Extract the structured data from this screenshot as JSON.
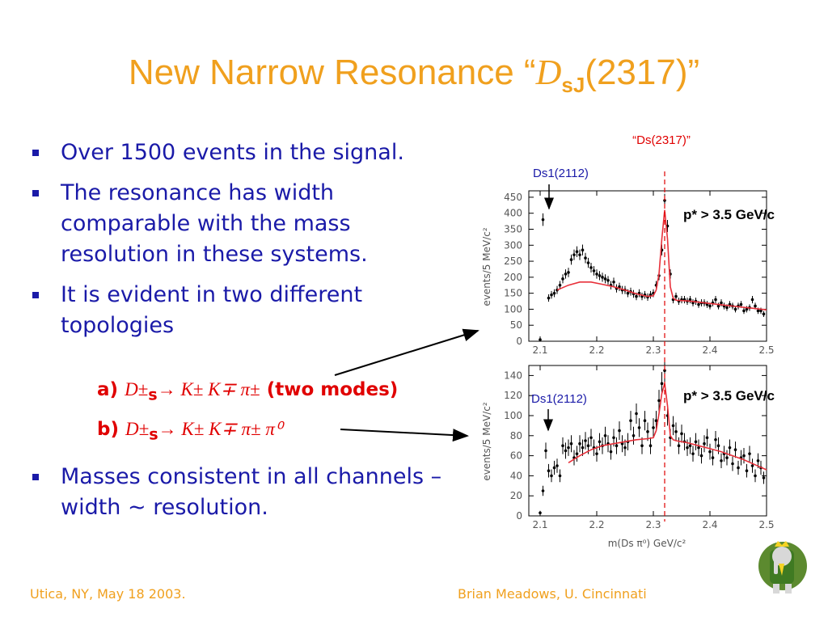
{
  "title": {
    "text": "New Narrow Resonance “",
    "symbol": "D",
    "sub": "sJ",
    "rest": "(2317)”"
  },
  "bullets": [
    "Over 1500 events in the signal.",
    "The resonance has width comparable with the mass resolution in these systems.",
    "It is evident in two different topologies",
    "Masses consistent in all channels – width ∼ resolution."
  ],
  "subitems": [
    {
      "label": "a)",
      "formula_a": "D±",
      "formula_sub": "s",
      "formula_b": "→ K± K∓ π±",
      "note": "(two modes)"
    },
    {
      "label": "b)",
      "formula_a": "D±",
      "formula_sub": "s",
      "formula_b": "→ K± K∓ π± π⁰",
      "note": ""
    }
  ],
  "annotations": {
    "top_label": "“Ds(2317)”",
    "ds1_label": "Ds1(2112)",
    "pcut_label": "p* > 3.5 GeV/c"
  },
  "footer": {
    "left": "Utica, NY, May 18 2003.",
    "right": "Brian Meadows, U. Cincinnati"
  },
  "colors": {
    "title": "#f0a01e",
    "bullet": "#1a1aa8",
    "red": "#e00000",
    "fit": "#e8303a"
  },
  "chart_data": [
    {
      "type": "scatter",
      "ylabel": "events/5 MeV/c²",
      "xlim": [
        2.08,
        2.5
      ],
      "ylim": [
        0,
        470
      ],
      "xticks": [
        "2.1",
        "2.2",
        "2.3",
        "2.4",
        "2.5"
      ],
      "yticks": [
        "0",
        "50",
        "100",
        "150",
        "200",
        "250",
        "300",
        "350",
        "400",
        "450"
      ],
      "x": [
        2.1,
        2.105,
        2.115,
        2.12,
        2.125,
        2.13,
        2.135,
        2.14,
        2.145,
        2.15,
        2.155,
        2.16,
        2.165,
        2.17,
        2.175,
        2.18,
        2.185,
        2.19,
        2.195,
        2.2,
        2.205,
        2.21,
        2.215,
        2.22,
        2.225,
        2.23,
        2.235,
        2.24,
        2.245,
        2.25,
        2.255,
        2.26,
        2.265,
        2.27,
        2.275,
        2.28,
        2.285,
        2.29,
        2.295,
        2.3,
        2.305,
        2.31,
        2.315,
        2.32,
        2.325,
        2.33,
        2.335,
        2.34,
        2.345,
        2.35,
        2.355,
        2.36,
        2.365,
        2.37,
        2.375,
        2.38,
        2.385,
        2.39,
        2.395,
        2.4,
        2.405,
        2.41,
        2.415,
        2.42,
        2.425,
        2.43,
        2.435,
        2.44,
        2.445,
        2.45,
        2.455,
        2.46,
        2.465,
        2.47,
        2.475,
        2.48,
        2.485,
        2.49,
        2.495
      ],
      "y": [
        5,
        380,
        135,
        145,
        150,
        160,
        175,
        195,
        210,
        215,
        255,
        270,
        280,
        270,
        285,
        260,
        245,
        230,
        220,
        210,
        205,
        200,
        195,
        190,
        175,
        185,
        165,
        170,
        160,
        160,
        150,
        155,
        148,
        140,
        150,
        140,
        145,
        138,
        145,
        150,
        175,
        205,
        285,
        440,
        360,
        210,
        130,
        140,
        125,
        130,
        130,
        125,
        130,
        120,
        125,
        115,
        120,
        120,
        115,
        110,
        120,
        130,
        110,
        120,
        110,
        105,
        115,
        110,
        100,
        110,
        115,
        95,
        100,
        105,
        130,
        110,
        95,
        95,
        85
      ],
      "fit_x": [
        2.13,
        2.15,
        2.17,
        2.19,
        2.21,
        2.23,
        2.25,
        2.27,
        2.29,
        2.3,
        2.305,
        2.31,
        2.315,
        2.32,
        2.325,
        2.33,
        2.335,
        2.34,
        2.36,
        2.38,
        2.4,
        2.42,
        2.44,
        2.46,
        2.48,
        2.5
      ],
      "fit_y": [
        160,
        175,
        185,
        185,
        178,
        170,
        160,
        148,
        140,
        142,
        160,
        210,
        320,
        410,
        320,
        170,
        135,
        128,
        126,
        122,
        118,
        114,
        110,
        106,
        102,
        98
      ]
    },
    {
      "type": "scatter",
      "xlabel": "m(Ds π⁰) GeV/c²",
      "ylabel": "events/5 MeV/c²",
      "xlim": [
        2.08,
        2.5
      ],
      "ylim": [
        0,
        150
      ],
      "xticks": [
        "2.1",
        "2.2",
        "2.3",
        "2.4",
        "2.5"
      ],
      "yticks": [
        "0",
        "20",
        "40",
        "60",
        "80",
        "100",
        "120",
        "140"
      ],
      "x": [
        2.1,
        2.105,
        2.11,
        2.115,
        2.12,
        2.125,
        2.13,
        2.135,
        2.14,
        2.145,
        2.15,
        2.155,
        2.16,
        2.165,
        2.17,
        2.175,
        2.18,
        2.185,
        2.19,
        2.195,
        2.2,
        2.205,
        2.21,
        2.215,
        2.22,
        2.225,
        2.23,
        2.235,
        2.24,
        2.245,
        2.25,
        2.255,
        2.26,
        2.265,
        2.27,
        2.275,
        2.28,
        2.285,
        2.29,
        2.295,
        2.3,
        2.305,
        2.31,
        2.315,
        2.32,
        2.325,
        2.33,
        2.335,
        2.34,
        2.345,
        2.35,
        2.355,
        2.36,
        2.365,
        2.37,
        2.375,
        2.38,
        2.385,
        2.39,
        2.395,
        2.4,
        2.405,
        2.41,
        2.415,
        2.42,
        2.425,
        2.43,
        2.435,
        2.44,
        2.445,
        2.45,
        2.455,
        2.46,
        2.465,
        2.47,
        2.475,
        2.48,
        2.485,
        2.49,
        2.495
      ],
      "y": [
        3,
        25,
        65,
        45,
        40,
        48,
        50,
        40,
        70,
        65,
        68,
        72,
        58,
        62,
        72,
        68,
        75,
        70,
        78,
        68,
        62,
        74,
        70,
        80,
        72,
        64,
        78,
        70,
        85,
        72,
        68,
        74,
        95,
        80,
        102,
        88,
        70,
        95,
        84,
        70,
        88,
        95,
        115,
        132,
        145,
        100,
        78,
        90,
        84,
        70,
        82,
        74,
        68,
        70,
        62,
        74,
        68,
        60,
        72,
        78,
        64,
        58,
        76,
        70,
        55,
        62,
        58,
        68,
        52,
        66,
        48,
        58,
        60,
        45,
        62,
        50,
        40,
        55,
        48,
        38
      ],
      "fit_x": [
        2.15,
        2.17,
        2.19,
        2.21,
        2.23,
        2.25,
        2.27,
        2.29,
        2.3,
        2.305,
        2.31,
        2.315,
        2.32,
        2.325,
        2.33,
        2.335,
        2.34,
        2.36,
        2.38,
        2.4,
        2.42,
        2.44,
        2.46,
        2.48,
        2.5
      ],
      "fit_y": [
        53,
        60,
        66,
        70,
        72,
        74,
        76,
        77,
        78,
        85,
        102,
        122,
        132,
        110,
        80,
        76,
        75,
        73,
        70,
        67,
        64,
        60,
        56,
        51,
        46
      ]
    }
  ]
}
